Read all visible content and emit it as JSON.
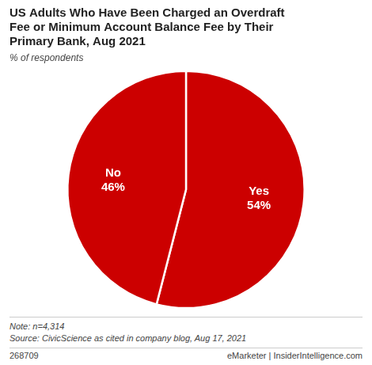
{
  "chart_data": {
    "type": "pie",
    "title": "US Adults Who Have Been Charged an Overdraft\nFee or Minimum Account Balance Fee by Their\nPrimary Bank, Aug 2021",
    "subtitle": "% of respondents",
    "categories": [
      "Yes",
      "No"
    ],
    "values": [
      54,
      46
    ],
    "value_labels": [
      "54%",
      "46%"
    ],
    "data_labels": true,
    "color": "#cc0000",
    "legend": false,
    "annotations": [
      "Note: n=4,314\nSource: CivicScience as cited in company blog, Aug 17, 2021",
      "268709",
      "eMarketer | InsiderIntelligence.com"
    ]
  }
}
